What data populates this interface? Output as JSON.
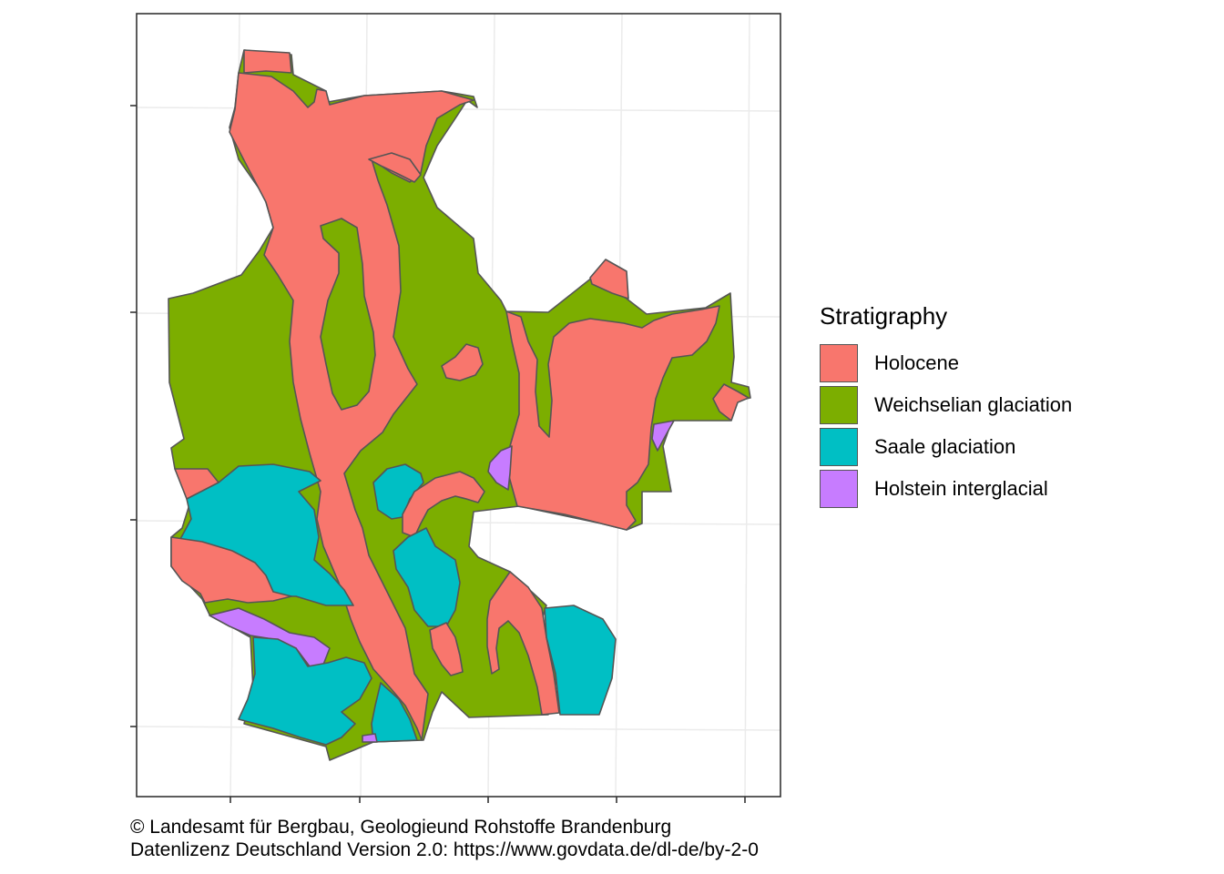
{
  "legend": {
    "title": "Stratigraphy",
    "items": [
      {
        "label": "Holocene",
        "color": "#F8766D"
      },
      {
        "label": "Weichselian glaciation",
        "color": "#7CAE00"
      },
      {
        "label": "Saale glaciation",
        "color": "#00BFC4"
      },
      {
        "label": "Holstein interglacial",
        "color": "#C77CFF"
      }
    ]
  },
  "caption": {
    "line1": "© Landesamt für Bergbau, Geologieund Rohstoffe Brandenburg",
    "line2": "Datenlizenz Deutschland Version 2.0: https://www.govdata.de/dl-de/by-2-0"
  },
  "colors": {
    "panel_border": "#333333",
    "grid": "#EBEBEB",
    "polygon_outline": "#555555"
  },
  "axes": {
    "x_tick_labels": [],
    "y_tick_labels": []
  }
}
